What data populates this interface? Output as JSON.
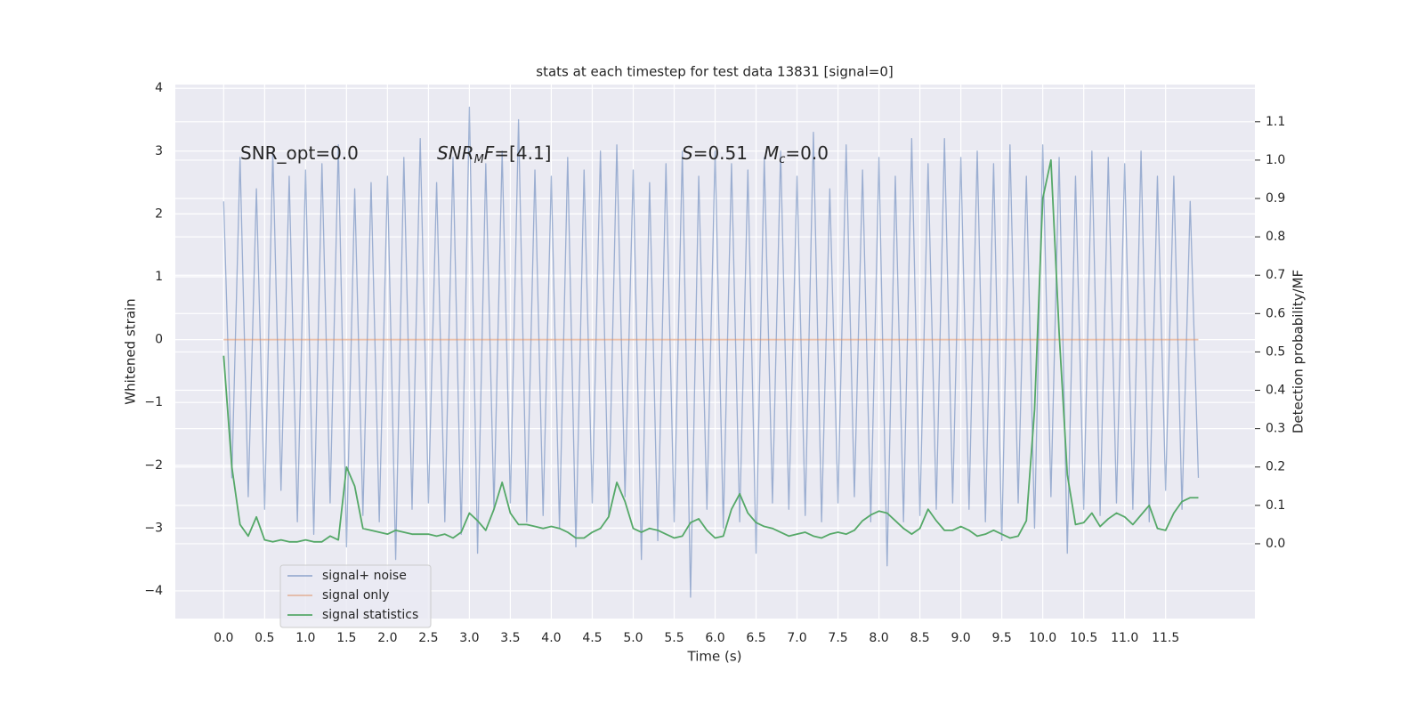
{
  "chart_data": {
    "type": "line",
    "title": "stats at each timestep for test data 13831 [signal=0]",
    "xlabel": "Time (s)",
    "ylabel": "Whitened strain",
    "y2label": "Detection probability/MF",
    "x": [
      0.0,
      0.1,
      0.2,
      0.3,
      0.4,
      0.5,
      0.6,
      0.7,
      0.8,
      0.9,
      1.0,
      1.1,
      1.2,
      1.3,
      1.4,
      1.5,
      1.6,
      1.7,
      1.8,
      1.9,
      2.0,
      2.1,
      2.2,
      2.3,
      2.4,
      2.5,
      2.6,
      2.7,
      2.8,
      2.9,
      3.0,
      3.1,
      3.2,
      3.3,
      3.4,
      3.5,
      3.6,
      3.7,
      3.8,
      3.9,
      4.0,
      4.1,
      4.2,
      4.3,
      4.4,
      4.5,
      4.6,
      4.7,
      4.8,
      4.9,
      5.0,
      5.1,
      5.2,
      5.3,
      5.4,
      5.5,
      5.6,
      5.7,
      5.8,
      5.9,
      6.0,
      6.1,
      6.2,
      6.3,
      6.4,
      6.5,
      6.6,
      6.7,
      6.8,
      6.9,
      7.0,
      7.1,
      7.2,
      7.3,
      7.4,
      7.5,
      7.6,
      7.7,
      7.8,
      7.9,
      8.0,
      8.1,
      8.2,
      8.3,
      8.4,
      8.5,
      8.6,
      8.7,
      8.8,
      8.9,
      9.0,
      9.1,
      9.2,
      9.3,
      9.4,
      9.5,
      9.6,
      9.7,
      9.8,
      9.9,
      10.0,
      10.1,
      10.2,
      10.3,
      10.4,
      10.5,
      10.6,
      10.7,
      10.8,
      10.9,
      11.0,
      11.1,
      11.2,
      11.3,
      11.4,
      11.5,
      11.6,
      11.7,
      11.8,
      11.9
    ],
    "series": [
      {
        "name": "signal+ noise",
        "color": "#4c72b0",
        "opacity": 0.5,
        "axis": "y",
        "values": [
          2.2,
          -2.2,
          2.9,
          -2.5,
          2.4,
          -2.7,
          3.0,
          -2.4,
          2.6,
          -2.9,
          2.7,
          -3.1,
          2.8,
          -2.6,
          3.1,
          -3.3,
          2.4,
          -2.8,
          2.5,
          -2.9,
          2.6,
          -3.5,
          2.9,
          -2.7,
          3.2,
          -2.6,
          2.5,
          -2.9,
          2.9,
          -3.1,
          3.7,
          -3.4,
          2.8,
          -2.7,
          3.0,
          -2.6,
          3.5,
          -2.9,
          2.7,
          -2.8,
          2.6,
          -3.0,
          2.9,
          -3.3,
          2.7,
          -2.6,
          3.0,
          -2.8,
          3.1,
          -2.5,
          2.7,
          -3.5,
          2.5,
          -3.2,
          2.8,
          -2.9,
          3.0,
          -4.1,
          2.6,
          -2.7,
          3.0,
          -3.0,
          2.8,
          -2.9,
          2.7,
          -3.4,
          2.9,
          -2.6,
          3.0,
          -2.7,
          2.6,
          -2.8,
          3.3,
          -2.9,
          2.4,
          -2.6,
          3.1,
          -2.5,
          2.7,
          -2.9,
          2.9,
          -3.6,
          2.6,
          -2.9,
          3.2,
          -2.8,
          2.8,
          -2.7,
          3.2,
          -2.6,
          2.9,
          -2.7,
          3.0,
          -2.9,
          2.8,
          -3.2,
          3.1,
          -2.6,
          2.6,
          -3.0,
          3.1,
          -2.5,
          2.9,
          -3.4,
          2.6,
          -2.7,
          3.0,
          -2.8,
          2.9,
          -2.6,
          2.8,
          -2.7,
          3.0,
          -2.9,
          2.6,
          -2.4,
          2.6,
          -2.7,
          2.2,
          -2.2
        ]
      },
      {
        "name": "signal only",
        "color": "#dd8452",
        "opacity": 0.5,
        "axis": "y",
        "values": [
          0,
          0,
          0,
          0,
          0,
          0,
          0,
          0,
          0,
          0,
          0,
          0,
          0,
          0,
          0,
          0,
          0,
          0,
          0,
          0,
          0,
          0,
          0,
          0,
          0,
          0,
          0,
          0,
          0,
          0,
          0,
          0,
          0,
          0,
          0,
          0,
          0,
          0,
          0,
          0,
          0,
          0,
          0,
          0,
          0,
          0,
          0,
          0,
          0,
          0,
          0,
          0,
          0,
          0,
          0,
          0,
          0,
          0,
          0,
          0,
          0,
          0,
          0,
          0,
          0,
          0,
          0,
          0,
          0,
          0,
          0,
          0,
          0,
          0,
          0,
          0,
          0,
          0,
          0,
          0,
          0,
          0,
          0,
          0,
          0,
          0,
          0,
          0,
          0,
          0,
          0,
          0,
          0,
          0,
          0,
          0,
          0,
          0,
          0,
          0,
          0,
          0,
          0,
          0,
          0,
          0,
          0,
          0,
          0,
          0,
          0,
          0,
          0,
          0,
          0,
          0,
          0,
          0,
          0,
          0
        ]
      },
      {
        "name": "signal statistics",
        "color": "#55a868",
        "opacity": 1,
        "axis": "y2",
        "values": [
          0.49,
          0.2,
          0.05,
          0.02,
          0.07,
          0.01,
          0.005,
          0.01,
          0.005,
          0.005,
          0.01,
          0.005,
          0.005,
          0.02,
          0.01,
          0.2,
          0.15,
          0.04,
          0.035,
          0.03,
          0.025,
          0.035,
          0.03,
          0.025,
          0.025,
          0.025,
          0.02,
          0.025,
          0.015,
          0.03,
          0.08,
          0.06,
          0.035,
          0.09,
          0.16,
          0.08,
          0.05,
          0.05,
          0.045,
          0.04,
          0.045,
          0.04,
          0.03,
          0.015,
          0.015,
          0.03,
          0.04,
          0.07,
          0.16,
          0.11,
          0.04,
          0.03,
          0.04,
          0.035,
          0.025,
          0.015,
          0.02,
          0.055,
          0.065,
          0.035,
          0.015,
          0.02,
          0.09,
          0.13,
          0.08,
          0.055,
          0.045,
          0.04,
          0.03,
          0.02,
          0.025,
          0.03,
          0.02,
          0.015,
          0.025,
          0.03,
          0.025,
          0.035,
          0.06,
          0.075,
          0.085,
          0.08,
          0.06,
          0.04,
          0.025,
          0.04,
          0.09,
          0.06,
          0.035,
          0.035,
          0.045,
          0.035,
          0.02,
          0.025,
          0.035,
          0.025,
          0.015,
          0.02,
          0.06,
          0.35,
          0.9,
          1.0,
          0.55,
          0.18,
          0.05,
          0.055,
          0.08,
          0.045,
          0.065,
          0.08,
          0.07,
          0.05,
          0.075,
          0.1,
          0.04,
          0.035,
          0.08,
          0.11,
          0.12,
          0.12
        ]
      }
    ],
    "xlim": [
      -0.59,
      12.59
    ],
    "ylim": [
      -4.44,
      4.06
    ],
    "y2lim": [
      -0.195,
      1.197
    ],
    "xticks": [
      {
        "value": 0,
        "label": "0.0"
      },
      0.5,
      {
        "value": 1,
        "label": "1.0"
      },
      1.5,
      {
        "value": 2,
        "label": "2.0"
      },
      2.5,
      {
        "value": 3,
        "label": "3.0"
      },
      3.5,
      {
        "value": 4,
        "label": "4.0"
      },
      4.5,
      {
        "value": 5,
        "label": "5.0"
      },
      5.5,
      {
        "value": 6,
        "label": "6.0"
      },
      6.5,
      {
        "value": 7,
        "label": "7.0"
      },
      7.5,
      {
        "value": 8,
        "label": "8.0"
      },
      8.5,
      {
        "value": 9,
        "label": "9.0"
      },
      9.5,
      {
        "value": 10,
        "label": "10.0"
      },
      10.5,
      {
        "value": 11,
        "label": "11.0"
      },
      11.5
    ],
    "yticks": [
      {
        "value": -4,
        "label": "−4"
      },
      {
        "value": -3,
        "label": "−3"
      },
      {
        "value": -2,
        "label": "−2"
      },
      {
        "value": -1,
        "label": "−1"
      },
      0,
      1,
      2,
      3,
      4
    ],
    "y2ticks": [
      {
        "value": 0,
        "label": "0.0"
      },
      0.1,
      0.2,
      0.3,
      0.4,
      0.5,
      0.6,
      0.7,
      0.8,
      0.9,
      {
        "value": 1,
        "label": "1.0"
      },
      1.1
    ],
    "grid": true,
    "legend_loc": "lower left",
    "annotations": [
      [
        {
          "text": "SNR_opt=0.0"
        }
      ],
      [
        {
          "text": "SNR",
          "italic": true
        },
        {
          "text": "M",
          "italic": true,
          "sub": true
        },
        {
          "text": "F",
          "italic": true
        },
        {
          "text": "=[4.1]"
        }
      ],
      [
        {
          "text": "S",
          "italic": true
        },
        {
          "text": "=0.51"
        }
      ],
      [
        {
          "text": "M",
          "italic": true
        },
        {
          "text": "c",
          "italic": true,
          "sub": true
        },
        {
          "text": "=0.0"
        }
      ]
    ]
  }
}
